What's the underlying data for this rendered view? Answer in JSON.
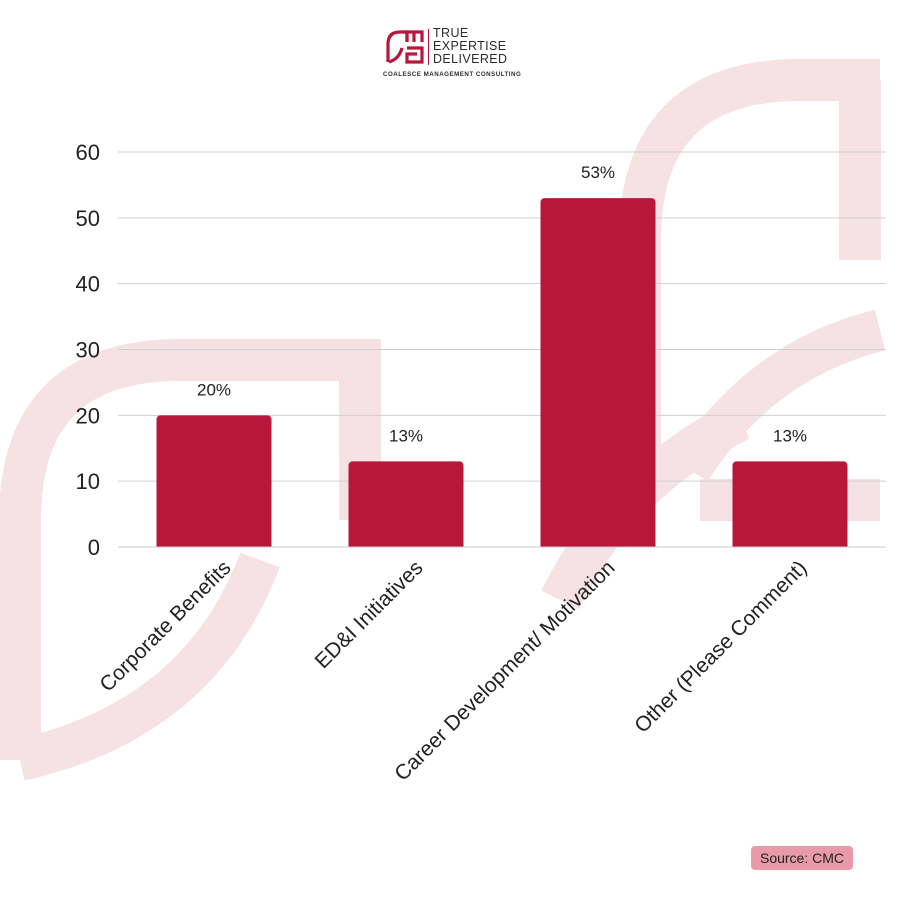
{
  "logo": {
    "tagline_line1": "TRUE",
    "tagline_line2": "EXPERTISE",
    "tagline_line3": "DELIVERED",
    "company": "COALESCE MANAGEMENT CONSULTING"
  },
  "source_label": "Source: CMC",
  "colors": {
    "bar": "#b8163a",
    "watermark": "#f6e2e5",
    "grid": "#d0d0d0",
    "source_badge": "#e89aa8"
  },
  "chart_data": {
    "type": "bar",
    "title": "",
    "xlabel": "",
    "ylabel": "",
    "categories": [
      "Corporate Benefits",
      "ED&I Initiatives",
      "Career Development/ Motivation",
      "Other (Please Comment)"
    ],
    "values": [
      20,
      13,
      53,
      13
    ],
    "data_labels": [
      "20%",
      "13%",
      "53%",
      "13%"
    ],
    "ylim": [
      0,
      60
    ],
    "yticks": [
      "0",
      "10",
      "20",
      "30",
      "40",
      "50",
      "60"
    ],
    "grid": true,
    "legend": "none"
  }
}
